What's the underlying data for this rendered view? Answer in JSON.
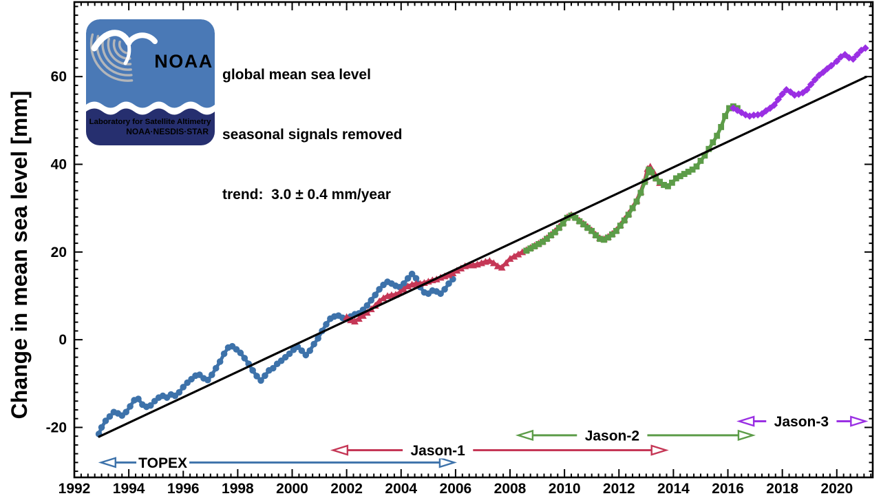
{
  "header": {
    "line1": "global mean sea level",
    "line2": "seasonal signals removed",
    "line3": "trend:  3.0 ± 0.4 mm/year"
  },
  "logo": {
    "org": "NOAA",
    "lab_line1": "Laboratory for Satellite Altimetry",
    "lab_line2": "NOAA·NESDIS·STAR",
    "colors": {
      "top": "#4a79b6",
      "bottom": "#262f6f",
      "text": "#ffffff",
      "arcs": "#b3b6ba"
    }
  },
  "chart_data": {
    "type": "line",
    "title": "global mean sea level (seasonal signals removed)",
    "xlabel": "",
    "ylabel": "Change in mean sea level [mm]",
    "xlim": [
      1992,
      2021.32
    ],
    "ylim": [
      -31.4,
      77
    ],
    "grid": false,
    "x_major_ticks": [
      1992,
      1994,
      1996,
      1998,
      2000,
      2002,
      2004,
      2006,
      2008,
      2010,
      2012,
      2014,
      2016,
      2018,
      2020
    ],
    "x_minor_step": 0.25,
    "y_major_ticks": [
      -20,
      0,
      20,
      40,
      60
    ],
    "y_minor_step": 2,
    "trend": {
      "label": "trend:  3.0 ± 0.4 mm/year",
      "slope_mm_per_year": 3.0,
      "uncertainty_mm_per_year": 0.4,
      "color": "#000000",
      "points": [
        [
          1992.88,
          -22.2
        ],
        [
          2021.1,
          60.0
        ]
      ]
    },
    "series": [
      {
        "name": "TOPEX",
        "color": "#3d72aa",
        "marker": "circle",
        "data": [
          [
            1992.9,
            -21.5
          ],
          [
            1993.0,
            -20.0
          ],
          [
            1993.15,
            -18.5
          ],
          [
            1993.3,
            -17.5
          ],
          [
            1993.45,
            -16.5
          ],
          [
            1993.6,
            -16.8
          ],
          [
            1993.75,
            -17.3
          ],
          [
            1993.9,
            -16.5
          ],
          [
            1994.05,
            -15.2
          ],
          [
            1994.2,
            -13.8
          ],
          [
            1994.35,
            -13.5
          ],
          [
            1994.5,
            -14.8
          ],
          [
            1994.65,
            -15.3
          ],
          [
            1994.8,
            -15.0
          ],
          [
            1994.95,
            -14.0
          ],
          [
            1995.1,
            -13.2
          ],
          [
            1995.25,
            -12.8
          ],
          [
            1995.4,
            -13.2
          ],
          [
            1995.55,
            -12.5
          ],
          [
            1995.7,
            -12.8
          ],
          [
            1995.85,
            -12.0
          ],
          [
            1996.0,
            -10.8
          ],
          [
            1996.15,
            -9.8
          ],
          [
            1996.3,
            -9.0
          ],
          [
            1996.45,
            -8.2
          ],
          [
            1996.6,
            -8.0
          ],
          [
            1996.75,
            -8.8
          ],
          [
            1996.9,
            -9.2
          ],
          [
            1997.05,
            -8.0
          ],
          [
            1997.2,
            -6.5
          ],
          [
            1997.35,
            -5.0
          ],
          [
            1997.5,
            -3.2
          ],
          [
            1997.65,
            -1.8
          ],
          [
            1997.8,
            -1.5
          ],
          [
            1997.95,
            -2.2
          ],
          [
            1998.1,
            -3.0
          ],
          [
            1998.25,
            -4.2
          ],
          [
            1998.4,
            -5.5
          ],
          [
            1998.55,
            -7.0
          ],
          [
            1998.7,
            -8.3
          ],
          [
            1998.85,
            -9.3
          ],
          [
            1999.0,
            -8.2
          ],
          [
            1999.15,
            -7.0
          ],
          [
            1999.3,
            -6.5
          ],
          [
            1999.45,
            -5.5
          ],
          [
            1999.6,
            -4.8
          ],
          [
            1999.75,
            -4.0
          ],
          [
            1999.9,
            -3.2
          ],
          [
            2000.05,
            -2.3
          ],
          [
            2000.2,
            -1.6
          ],
          [
            2000.35,
            -2.5
          ],
          [
            2000.5,
            -3.5
          ],
          [
            2000.65,
            -2.5
          ],
          [
            2000.8,
            -1.0
          ],
          [
            2000.95,
            0.3
          ],
          [
            2001.1,
            2.0
          ],
          [
            2001.25,
            3.5
          ],
          [
            2001.4,
            4.8
          ],
          [
            2001.55,
            5.3
          ],
          [
            2001.7,
            5.5
          ],
          [
            2001.85,
            5.0
          ],
          [
            2002.0,
            4.8
          ],
          [
            2002.15,
            5.3
          ],
          [
            2002.3,
            5.8
          ],
          [
            2002.45,
            6.0
          ],
          [
            2002.6,
            6.8
          ],
          [
            2002.75,
            7.8
          ],
          [
            2002.9,
            9.0
          ],
          [
            2003.05,
            10.2
          ],
          [
            2003.2,
            11.5
          ],
          [
            2003.35,
            12.5
          ],
          [
            2003.5,
            13.2
          ],
          [
            2003.65,
            12.8
          ],
          [
            2003.8,
            12.3
          ],
          [
            2003.95,
            12.0
          ],
          [
            2004.1,
            12.8
          ],
          [
            2004.25,
            14.0
          ],
          [
            2004.4,
            15.0
          ],
          [
            2004.55,
            14.0
          ],
          [
            2004.7,
            12.0
          ],
          [
            2004.85,
            10.8
          ],
          [
            2005.0,
            10.5
          ],
          [
            2005.15,
            11.2
          ],
          [
            2005.3,
            11.0
          ],
          [
            2005.45,
            10.5
          ],
          [
            2005.6,
            11.5
          ],
          [
            2005.75,
            12.8
          ],
          [
            2005.9,
            13.8
          ]
        ]
      },
      {
        "name": "Jason-1",
        "color": "#c53756",
        "marker": "triangle",
        "data": [
          [
            2002.0,
            5.2
          ],
          [
            2002.15,
            4.5
          ],
          [
            2002.3,
            4.2
          ],
          [
            2002.45,
            4.8
          ],
          [
            2002.6,
            5.5
          ],
          [
            2002.75,
            6.2
          ],
          [
            2002.9,
            7.0
          ],
          [
            2003.05,
            7.8
          ],
          [
            2003.2,
            8.8
          ],
          [
            2003.35,
            9.5
          ],
          [
            2003.5,
            10.0
          ],
          [
            2003.65,
            10.2
          ],
          [
            2003.8,
            10.3
          ],
          [
            2003.95,
            10.8
          ],
          [
            2004.1,
            11.5
          ],
          [
            2004.25,
            12.2
          ],
          [
            2004.4,
            12.6
          ],
          [
            2004.55,
            12.8
          ],
          [
            2004.7,
            12.8
          ],
          [
            2004.85,
            13.0
          ],
          [
            2005.0,
            13.3
          ],
          [
            2005.15,
            13.6
          ],
          [
            2005.3,
            13.8
          ],
          [
            2005.45,
            14.2
          ],
          [
            2005.6,
            14.5
          ],
          [
            2005.75,
            14.8
          ],
          [
            2005.9,
            15.2
          ],
          [
            2006.05,
            15.8
          ],
          [
            2006.2,
            16.3
          ],
          [
            2006.35,
            16.8
          ],
          [
            2006.5,
            17.0
          ],
          [
            2006.65,
            17.0
          ],
          [
            2006.8,
            17.2
          ],
          [
            2006.95,
            17.5
          ],
          [
            2007.1,
            17.8
          ],
          [
            2007.25,
            18.0
          ],
          [
            2007.4,
            17.5
          ],
          [
            2007.55,
            16.8
          ],
          [
            2007.7,
            16.5
          ],
          [
            2007.85,
            17.5
          ],
          [
            2008.0,
            18.5
          ],
          [
            2008.15,
            19.0
          ],
          [
            2008.3,
            19.5
          ],
          [
            2008.45,
            20.0
          ],
          [
            2008.6,
            20.5
          ],
          [
            2008.75,
            21.0
          ],
          [
            2008.9,
            21.5
          ],
          [
            2009.05,
            22.0
          ],
          [
            2009.2,
            22.5
          ],
          [
            2009.35,
            23.2
          ],
          [
            2009.5,
            24.0
          ],
          [
            2009.65,
            24.8
          ],
          [
            2009.8,
            25.8
          ],
          [
            2009.95,
            26.8
          ],
          [
            2010.1,
            28.0
          ],
          [
            2010.25,
            28.5
          ],
          [
            2010.4,
            28.0
          ],
          [
            2010.55,
            27.2
          ],
          [
            2010.7,
            26.5
          ],
          [
            2010.85,
            25.8
          ],
          [
            2011.0,
            25.0
          ],
          [
            2011.15,
            24.0
          ],
          [
            2011.3,
            23.2
          ],
          [
            2011.45,
            23.0
          ],
          [
            2011.6,
            23.5
          ],
          [
            2011.75,
            24.2
          ],
          [
            2011.9,
            25.0
          ],
          [
            2012.05,
            26.2
          ],
          [
            2012.2,
            27.5
          ],
          [
            2012.35,
            28.8
          ],
          [
            2012.5,
            30.2
          ],
          [
            2012.65,
            31.8
          ],
          [
            2012.8,
            33.8
          ],
          [
            2012.95,
            36.5
          ],
          [
            2013.05,
            39.0
          ],
          [
            2013.15,
            39.5
          ],
          [
            2013.3,
            38.0
          ],
          [
            2013.4,
            36.8
          ],
          [
            2013.5,
            35.8
          ]
        ]
      },
      {
        "name": "Jason-2",
        "color": "#5c9c48",
        "marker": "square",
        "data": [
          [
            2008.6,
            20.3
          ],
          [
            2008.75,
            20.8
          ],
          [
            2008.9,
            21.3
          ],
          [
            2009.05,
            21.8
          ],
          [
            2009.2,
            22.3
          ],
          [
            2009.35,
            23.0
          ],
          [
            2009.5,
            23.8
          ],
          [
            2009.65,
            24.5
          ],
          [
            2009.8,
            25.5
          ],
          [
            2009.95,
            26.5
          ],
          [
            2010.1,
            27.8
          ],
          [
            2010.25,
            28.3
          ],
          [
            2010.4,
            27.8
          ],
          [
            2010.55,
            27.0
          ],
          [
            2010.7,
            26.3
          ],
          [
            2010.85,
            25.5
          ],
          [
            2011.0,
            24.8
          ],
          [
            2011.15,
            23.8
          ],
          [
            2011.3,
            23.0
          ],
          [
            2011.45,
            22.8
          ],
          [
            2011.6,
            23.3
          ],
          [
            2011.75,
            24.0
          ],
          [
            2011.9,
            24.8
          ],
          [
            2012.05,
            26.0
          ],
          [
            2012.2,
            27.2
          ],
          [
            2012.35,
            28.5
          ],
          [
            2012.5,
            30.0
          ],
          [
            2012.65,
            31.5
          ],
          [
            2012.8,
            33.5
          ],
          [
            2012.95,
            36.0
          ],
          [
            2013.1,
            38.8
          ],
          [
            2013.2,
            38.2
          ],
          [
            2013.35,
            36.8
          ],
          [
            2013.5,
            36.0
          ],
          [
            2013.65,
            35.3
          ],
          [
            2013.8,
            35.0
          ],
          [
            2013.95,
            35.8
          ],
          [
            2014.1,
            36.8
          ],
          [
            2014.25,
            37.3
          ],
          [
            2014.4,
            37.8
          ],
          [
            2014.55,
            38.3
          ],
          [
            2014.7,
            38.8
          ],
          [
            2014.85,
            39.5
          ],
          [
            2015.0,
            40.8
          ],
          [
            2015.15,
            42.0
          ],
          [
            2015.3,
            43.5
          ],
          [
            2015.45,
            45.0
          ],
          [
            2015.6,
            46.5
          ],
          [
            2015.75,
            48.5
          ],
          [
            2015.9,
            51.0
          ],
          [
            2016.05,
            52.8
          ],
          [
            2016.2,
            53.2
          ],
          [
            2016.35,
            52.8
          ]
        ]
      },
      {
        "name": "Jason-3",
        "color": "#9a2fe3",
        "marker": "diamond",
        "data": [
          [
            2016.2,
            52.8
          ],
          [
            2016.35,
            52.3
          ],
          [
            2016.5,
            51.8
          ],
          [
            2016.65,
            51.3
          ],
          [
            2016.8,
            51.0
          ],
          [
            2016.95,
            51.2
          ],
          [
            2017.1,
            51.3
          ],
          [
            2017.25,
            51.5
          ],
          [
            2017.4,
            52.2
          ],
          [
            2017.55,
            52.8
          ],
          [
            2017.7,
            53.5
          ],
          [
            2017.85,
            54.8
          ],
          [
            2018.0,
            56.0
          ],
          [
            2018.15,
            57.0
          ],
          [
            2018.3,
            56.5
          ],
          [
            2018.45,
            55.8
          ],
          [
            2018.6,
            56.0
          ],
          [
            2018.75,
            56.3
          ],
          [
            2018.9,
            57.0
          ],
          [
            2019.05,
            58.2
          ],
          [
            2019.2,
            59.3
          ],
          [
            2019.35,
            60.3
          ],
          [
            2019.5,
            61.0
          ],
          [
            2019.65,
            61.8
          ],
          [
            2019.8,
            62.5
          ],
          [
            2020.0,
            63.5
          ],
          [
            2020.15,
            64.5
          ],
          [
            2020.3,
            65.0
          ],
          [
            2020.45,
            64.3
          ],
          [
            2020.6,
            64.0
          ],
          [
            2020.75,
            65.0
          ],
          [
            2020.9,
            66.0
          ],
          [
            2021.05,
            66.5
          ]
        ]
      }
    ],
    "mission_arrows": [
      {
        "label": "TOPEX",
        "color": "#3d72aa",
        "x_start": 1992.98,
        "x_end": 2005.95,
        "y_mm": -28.0,
        "label_x": 1995.25
      },
      {
        "label": "Jason-1",
        "color": "#c53756",
        "x_start": 2001.5,
        "x_end": 2013.73,
        "y_mm": -25.2,
        "label_x": 2005.35
      },
      {
        "label": "Jason-2",
        "color": "#5c9c48",
        "x_start": 2008.3,
        "x_end": 2016.92,
        "y_mm": -21.8,
        "label_x": 2011.75
      },
      {
        "label": "Jason-3",
        "color": "#9a2fe3",
        "x_start": 2016.42,
        "x_end": 2021.05,
        "y_mm": -18.6,
        "label_x": 2018.7
      }
    ]
  }
}
